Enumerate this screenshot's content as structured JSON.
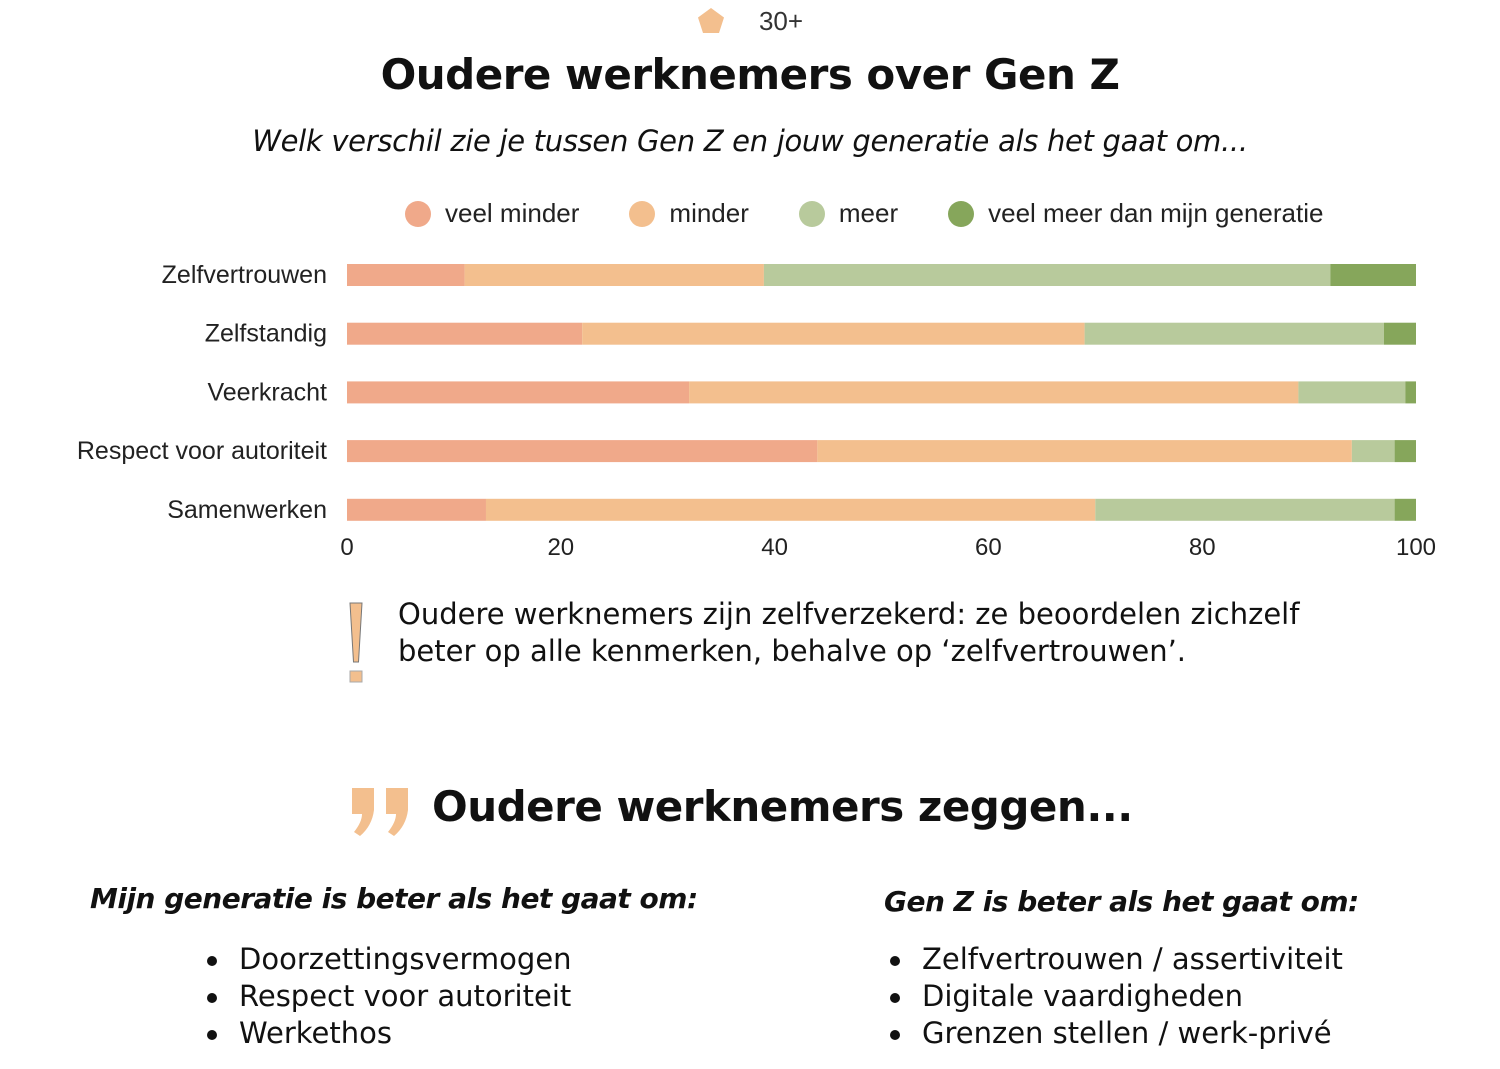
{
  "group_label": "30+",
  "title": "Oudere werknemers over Gen Z",
  "subtitle": "Welk verschil zie je tussen Gen Z en jouw generatie als het gaat om...",
  "chart_data": {
    "type": "bar",
    "orientation": "horizontal",
    "stacked": true,
    "categories": [
      "Zelfvertrouwen",
      "Zelfstandig",
      "Veerkracht",
      "Respect voor autoriteit",
      "Samenwerken"
    ],
    "series": [
      {
        "name": "veel minder",
        "color": "#f0a98a",
        "values": [
          11,
          22,
          32,
          44,
          13
        ]
      },
      {
        "name": "minder",
        "color": "#f3bf8e",
        "values": [
          28,
          47,
          57,
          50,
          57
        ]
      },
      {
        "name": "meer",
        "color": "#b8ca9c",
        "values": [
          53,
          28,
          10,
          4,
          28
        ]
      },
      {
        "name": "veel meer dan mijn generatie",
        "color": "#86a65b",
        "values": [
          8,
          3,
          1,
          2,
          2
        ]
      }
    ],
    "xlim": [
      0,
      100
    ],
    "xticks": [
      "0",
      "20",
      "40",
      "60",
      "80",
      "100"
    ],
    "grid": false,
    "legend_position": "top"
  },
  "note": {
    "icon": "exclamation-icon",
    "line1": "Oudere werknemers zijn zelfverzekerd: ze beoordelen zichzelf",
    "line2": "beter op alle kenmerken, behalve op ‘zelfvertrouwen’."
  },
  "quotes": {
    "icon": "quote-icon",
    "heading": "Oudere werknemers zeggen...",
    "left": {
      "heading": "Mijn generatie is beter als het gaat om:",
      "items": [
        "Doorzettingsvermogen",
        "Respect voor autoriteit",
        "Werkethos"
      ]
    },
    "right": {
      "heading": "Gen Z is beter als het gaat om:",
      "items": [
        "Zelfvertrouwen / assertiviteit",
        "Digitale vaardigheden",
        "Grenzen stellen / werk-privé"
      ]
    }
  },
  "accent_color": "#f3bf8e"
}
